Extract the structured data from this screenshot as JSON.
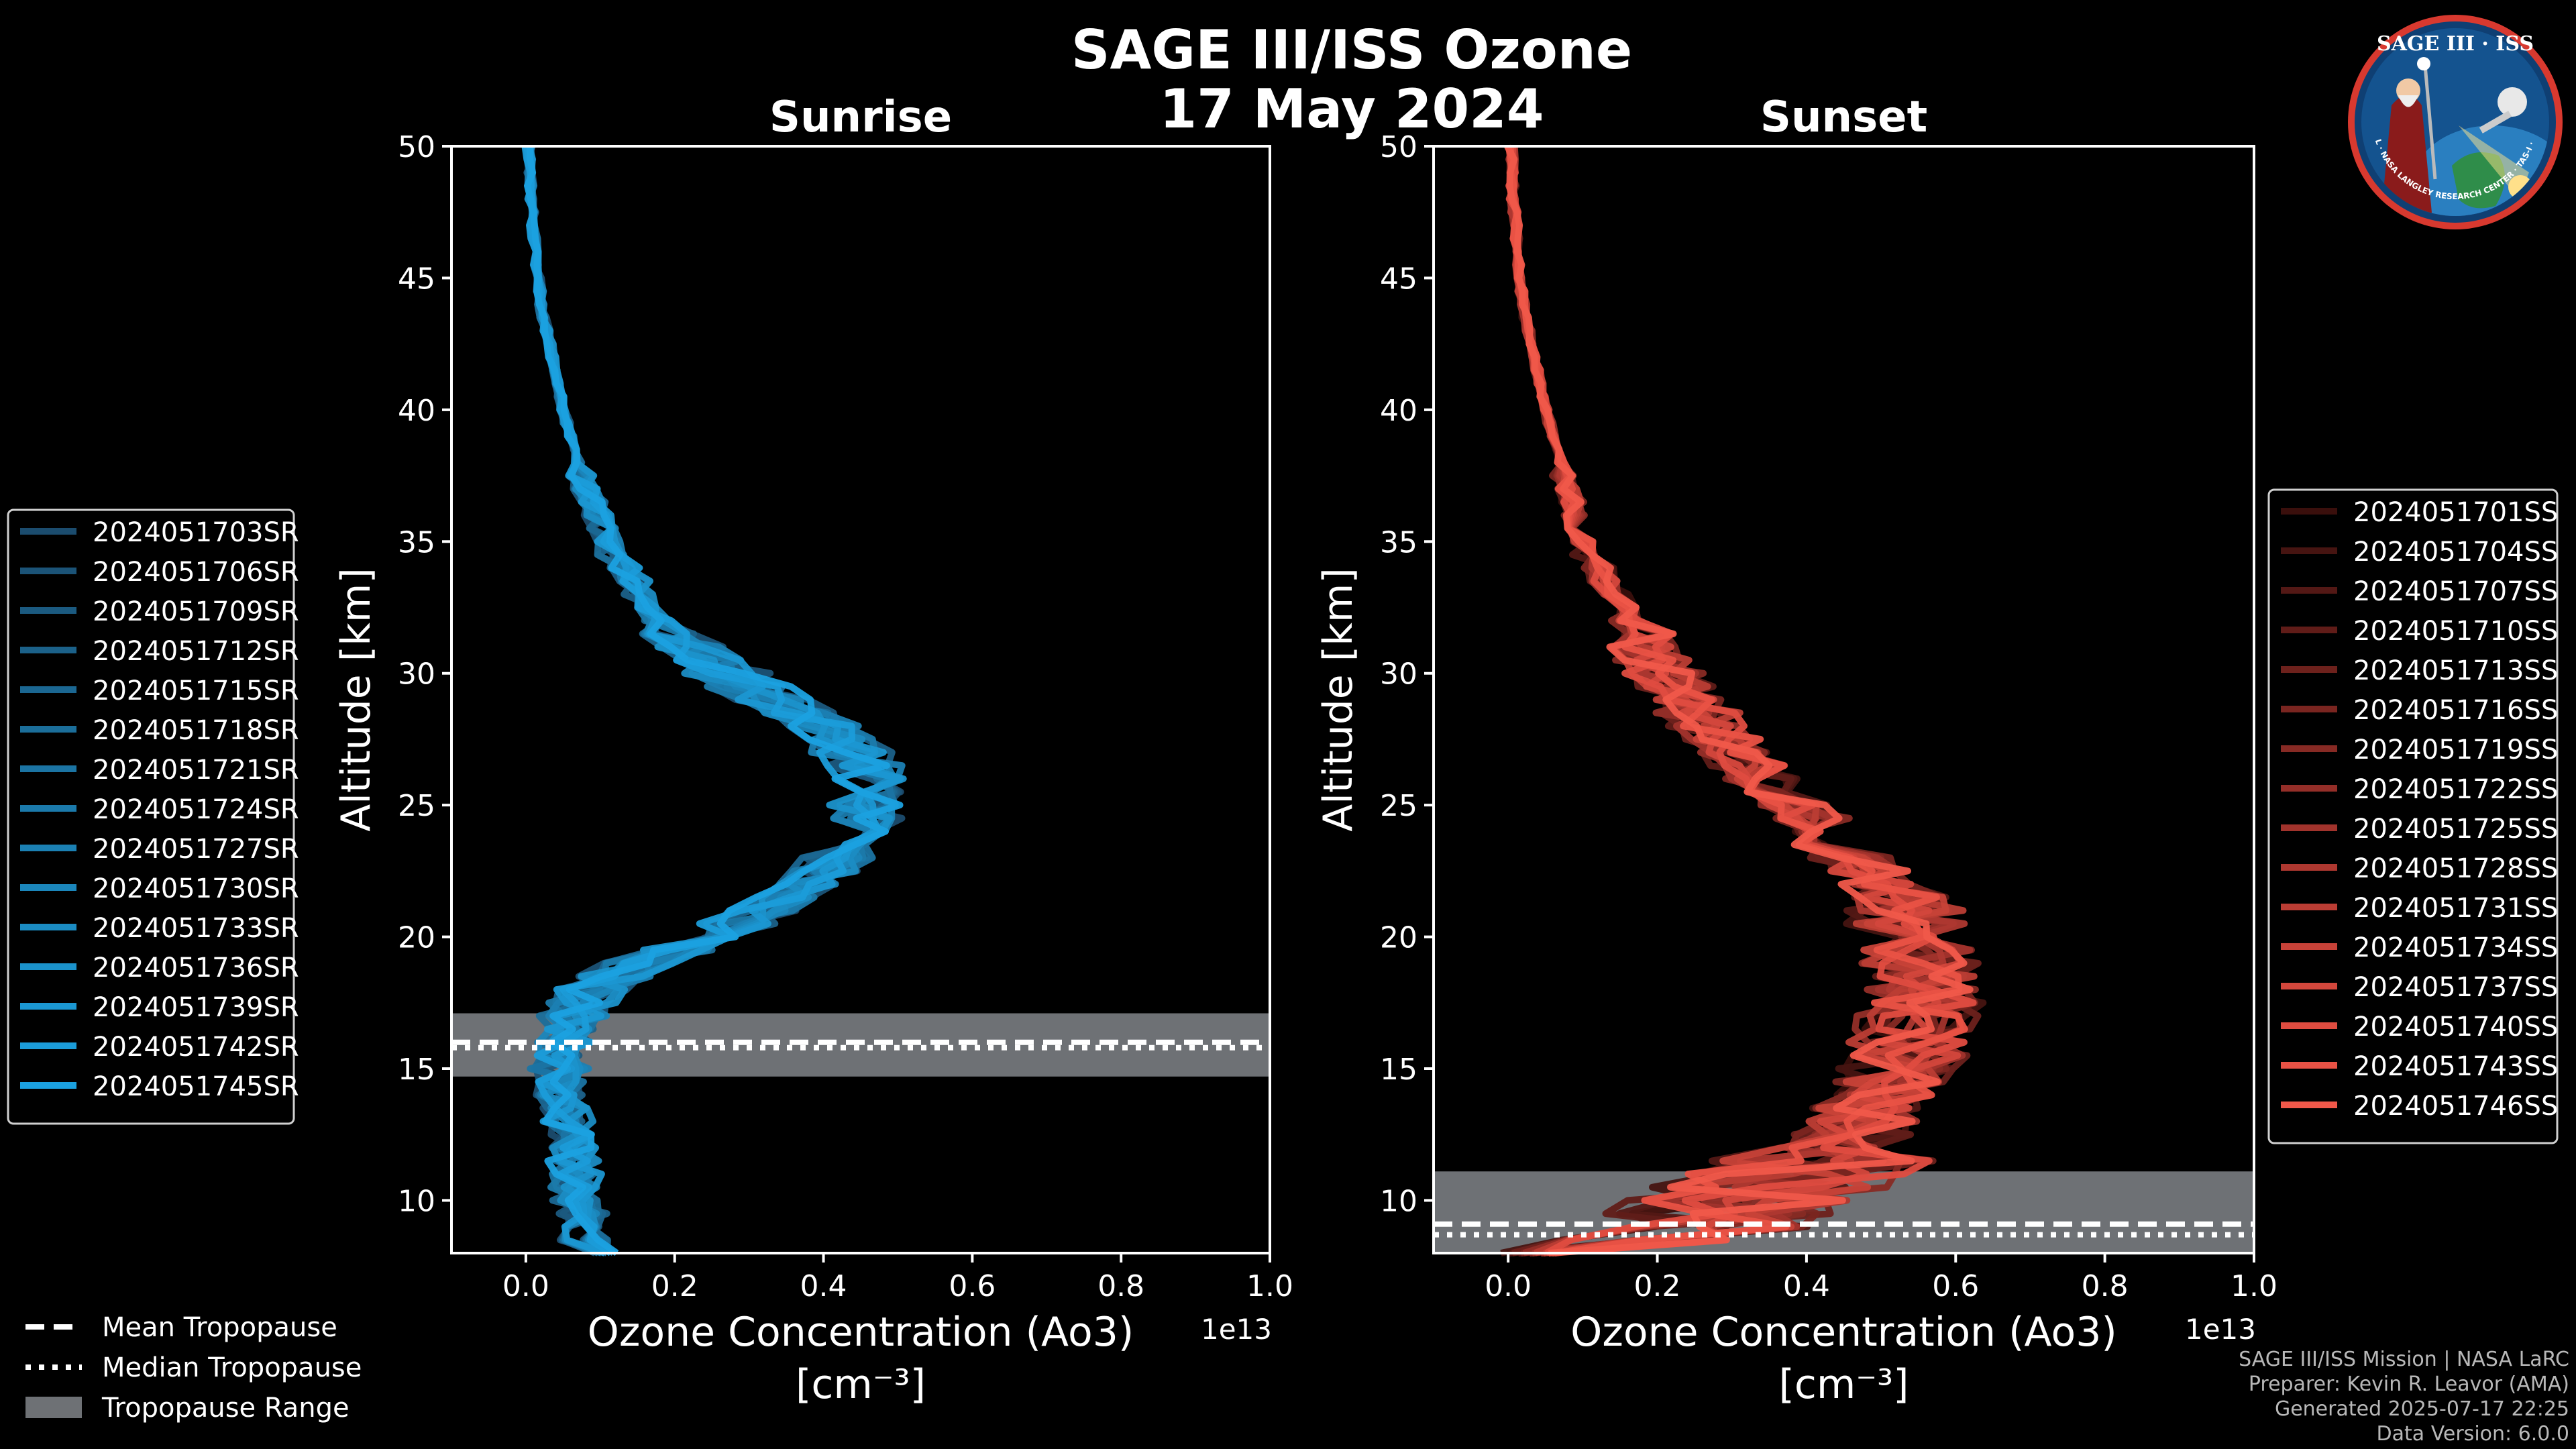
{
  "title": {
    "line1": "SAGE III/ISS Ozone",
    "line2": "17 May 2024"
  },
  "credits": [
    "SAGE III/ISS Mission | NASA LaRC",
    "Preparer: Kevin R. Leavor (AMA)",
    "Generated 2025-07-17 22:25",
    "Data Version: 6.0.0"
  ],
  "logo": {
    "text": "SAGE III · ISS",
    "ring_text": "BALL · NASA LANGLEY RESEARCH CENTER · TAS-I · ESA"
  },
  "tropopause_legend": [
    {
      "label": "Mean Tropopause",
      "style": "dashed"
    },
    {
      "label": "Median Tropopause",
      "style": "dotted"
    },
    {
      "label": "Tropopause Range",
      "style": "band"
    }
  ],
  "chart_data": [
    {
      "type": "line",
      "title": "Sunrise",
      "xlabel": "Ozone Concentration (Ao3)",
      "xlabel_units": "[cm⁻³]",
      "ylabel": "Altitude [km]",
      "x_scale_label": "1e13",
      "xlim": [
        -0.1,
        1.0
      ],
      "ylim": [
        8,
        50
      ],
      "xticks": [
        0.0,
        0.2,
        0.4,
        0.6,
        0.8,
        1.0
      ],
      "xtick_labels": [
        "0.0",
        "0.2",
        "0.4",
        "0.6",
        "0.8",
        "1.0"
      ],
      "yticks": [
        10,
        15,
        20,
        25,
        30,
        35,
        40,
        45,
        50
      ],
      "ytick_labels": [
        "10",
        "15",
        "20",
        "25",
        "30",
        "35",
        "40",
        "45",
        "50"
      ],
      "tropopause": {
        "mean": 16.0,
        "median": 16.0,
        "range": [
          14.7,
          17.1
        ]
      },
      "base_profile": {
        "altitude": [
          8,
          9,
          10,
          11,
          12,
          13,
          14,
          15,
          16,
          17,
          18,
          19,
          20,
          21,
          22,
          23,
          24,
          25,
          26,
          27,
          28,
          29,
          30,
          31,
          32,
          33,
          34,
          35,
          36,
          37,
          38,
          40,
          42,
          44,
          46,
          48,
          50
        ],
        "ozone": [
          0.09,
          0.08,
          0.07,
          0.065,
          0.06,
          0.055,
          0.05,
          0.045,
          0.05,
          0.065,
          0.09,
          0.16,
          0.25,
          0.32,
          0.38,
          0.42,
          0.45,
          0.46,
          0.46,
          0.44,
          0.4,
          0.33,
          0.27,
          0.22,
          0.18,
          0.155,
          0.13,
          0.11,
          0.095,
          0.08,
          0.07,
          0.05,
          0.035,
          0.02,
          0.012,
          0.007,
          0.004
        ]
      },
      "legend_color": "#1a8bd1",
      "series": [
        {
          "name": "2024051703SR",
          "color": "#1b4c6e"
        },
        {
          "name": "2024051706SR",
          "color": "#1b5377"
        },
        {
          "name": "2024051709SR",
          "color": "#1b5a80"
        },
        {
          "name": "2024051712SR",
          "color": "#1b6189"
        },
        {
          "name": "2024051715SR",
          "color": "#1b6792"
        },
        {
          "name": "2024051718SR",
          "color": "#1b6e9a"
        },
        {
          "name": "2024051721SR",
          "color": "#1b74a3"
        },
        {
          "name": "2024051724SR",
          "color": "#1b7aab"
        },
        {
          "name": "2024051727SR",
          "color": "#1b80b3"
        },
        {
          "name": "2024051730SR",
          "color": "#1b86bb"
        },
        {
          "name": "2024051733SR",
          "color": "#1b8cc3"
        },
        {
          "name": "2024051736SR",
          "color": "#1b92cb"
        },
        {
          "name": "2024051739SR",
          "color": "#1b97d2"
        },
        {
          "name": "2024051742SR",
          "color": "#1b9cd9"
        },
        {
          "name": "2024051745SR",
          "color": "#1ba1e0"
        }
      ]
    },
    {
      "type": "line",
      "title": "Sunset",
      "xlabel": "Ozone Concentration (Ao3)",
      "xlabel_units": "[cm⁻³]",
      "ylabel": "Altitude [km]",
      "x_scale_label": "1e13",
      "xlim": [
        -0.1,
        1.0
      ],
      "ylim": [
        8,
        50
      ],
      "xticks": [
        0.0,
        0.2,
        0.4,
        0.6,
        0.8,
        1.0
      ],
      "xtick_labels": [
        "0.0",
        "0.2",
        "0.4",
        "0.6",
        "0.8",
        "1.0"
      ],
      "yticks": [
        10,
        15,
        20,
        25,
        30,
        35,
        40,
        45,
        50
      ],
      "ytick_labels": [
        "10",
        "15",
        "20",
        "25",
        "30",
        "35",
        "40",
        "45",
        "50"
      ],
      "tropopause": {
        "mean": 9.1,
        "median": 8.9,
        "range": [
          8.0,
          11.1
        ]
      },
      "base_profile": {
        "altitude": [
          8,
          9,
          10,
          11,
          12,
          13,
          14,
          15,
          16,
          17,
          18,
          19,
          20,
          21,
          22,
          23,
          24,
          25,
          26,
          27,
          28,
          29,
          30,
          31,
          32,
          33,
          34,
          35,
          36,
          37,
          38,
          40,
          42,
          44,
          46,
          48,
          50
        ],
        "ozone": [
          0.15,
          0.25,
          0.32,
          0.38,
          0.45,
          0.48,
          0.5,
          0.52,
          0.54,
          0.55,
          0.56,
          0.56,
          0.55,
          0.53,
          0.5,
          0.46,
          0.42,
          0.38,
          0.34,
          0.3,
          0.27,
          0.24,
          0.21,
          0.18,
          0.16,
          0.14,
          0.12,
          0.1,
          0.09,
          0.08,
          0.07,
          0.05,
          0.035,
          0.02,
          0.012,
          0.007,
          0.004
        ]
      },
      "legend_color": "#e8574a",
      "series": [
        {
          "name": "2024051701SS",
          "color": "#3a0f0c"
        },
        {
          "name": "2024051704SS",
          "color": "#461411"
        },
        {
          "name": "2024051707SS",
          "color": "#531815"
        },
        {
          "name": "2024051710SS",
          "color": "#601c18"
        },
        {
          "name": "2024051713SS",
          "color": "#6d211c"
        },
        {
          "name": "2024051716SS",
          "color": "#7a2520"
        },
        {
          "name": "2024051719SS",
          "color": "#872a24"
        },
        {
          "name": "2024051722SS",
          "color": "#942e28"
        },
        {
          "name": "2024051725SS",
          "color": "#a1332c"
        },
        {
          "name": "2024051728SS",
          "color": "#ae3830"
        },
        {
          "name": "2024051731SS",
          "color": "#bb3d34"
        },
        {
          "name": "2024051734SS",
          "color": "#c74238"
        },
        {
          "name": "2024051737SS",
          "color": "#d3473c"
        },
        {
          "name": "2024051740SS",
          "color": "#df4c40"
        },
        {
          "name": "2024051743SS",
          "color": "#e95245"
        },
        {
          "name": "2024051746SS",
          "color": "#f0584a"
        }
      ]
    }
  ]
}
